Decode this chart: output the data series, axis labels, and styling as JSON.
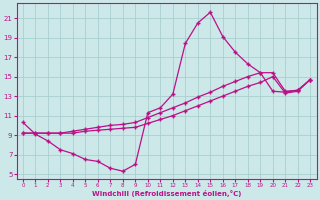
{
  "background_color": "#cce8e8",
  "grid_color": "#aacece",
  "line_color": "#bb1188",
  "marker": "+",
  "xlabel": "Windchill (Refroidissement éolien,°C)",
  "xlim": [
    -0.5,
    23.5
  ],
  "ylim": [
    4.5,
    22.5
  ],
  "yticks": [
    5,
    7,
    9,
    11,
    13,
    15,
    17,
    19,
    21
  ],
  "xticks": [
    0,
    1,
    2,
    3,
    4,
    5,
    6,
    7,
    8,
    9,
    10,
    11,
    12,
    13,
    14,
    15,
    16,
    17,
    18,
    19,
    20,
    21,
    22,
    23
  ],
  "curve1_x": [
    0,
    1,
    2,
    3,
    4,
    5,
    6,
    7,
    8,
    9,
    10,
    11,
    12,
    13,
    14,
    15,
    16,
    17,
    18,
    19,
    20,
    21,
    22,
    23
  ],
  "curve1_y": [
    10.3,
    9.1,
    8.4,
    7.5,
    7.1,
    6.5,
    6.3,
    5.6,
    5.3,
    6.0,
    11.3,
    11.8,
    13.2,
    18.4,
    20.5,
    21.6,
    19.1,
    17.5,
    16.3,
    15.4,
    13.5,
    13.4,
    13.6,
    14.7
  ],
  "curve2_x": [
    0,
    1,
    2,
    3,
    4,
    5,
    6,
    7,
    8,
    9,
    10,
    11,
    12,
    13,
    14,
    15,
    16,
    17,
    18,
    19,
    20,
    21,
    22,
    23
  ],
  "curve2_y": [
    9.2,
    9.2,
    9.2,
    9.2,
    9.4,
    9.6,
    9.8,
    10.0,
    10.1,
    10.3,
    10.8,
    11.3,
    11.8,
    12.3,
    12.9,
    13.4,
    14.0,
    14.5,
    15.0,
    15.4,
    15.4,
    13.5,
    13.6,
    14.7
  ],
  "curve3_x": [
    0,
    1,
    2,
    3,
    4,
    5,
    6,
    7,
    8,
    9,
    10,
    11,
    12,
    13,
    14,
    15,
    16,
    17,
    18,
    19,
    20,
    21,
    22,
    23
  ],
  "curve3_y": [
    9.2,
    9.2,
    9.2,
    9.2,
    9.2,
    9.4,
    9.5,
    9.6,
    9.7,
    9.8,
    10.2,
    10.6,
    11.0,
    11.5,
    12.0,
    12.5,
    13.0,
    13.5,
    14.0,
    14.4,
    15.0,
    13.3,
    13.5,
    14.7
  ]
}
